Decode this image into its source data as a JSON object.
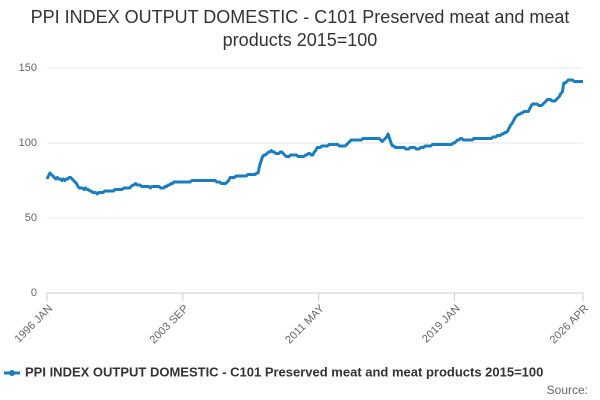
{
  "chart_data": {
    "type": "line",
    "title": "PPI INDEX OUTPUT DOMESTIC - C101 Preserved meat and meat products 2015=100",
    "source": "Source:",
    "categories": [
      "1996 JAN",
      null,
      null,
      null,
      null,
      null,
      null,
      null,
      null,
      null,
      null,
      null,
      null,
      null,
      null,
      null,
      null,
      null,
      null,
      null,
      null,
      null,
      null,
      null,
      null,
      null,
      null,
      null,
      null,
      null,
      null,
      null,
      null,
      null,
      null,
      null,
      null,
      null,
      null,
      null,
      null,
      null,
      null,
      null,
      null,
      null,
      null,
      null,
      null,
      null,
      null,
      null,
      null,
      null,
      null,
      null,
      null,
      null,
      null,
      null,
      null,
      null,
      null,
      null,
      null,
      null,
      null,
      null,
      null,
      null,
      null,
      null,
      null,
      null,
      null,
      null,
      null,
      null,
      null,
      null,
      null,
      null,
      null,
      null,
      null,
      null,
      null,
      null,
      null,
      null,
      null,
      null,
      "2003 SEP",
      null,
      null,
      null,
      null,
      null,
      null,
      null,
      null,
      null,
      null,
      null,
      null,
      null,
      null,
      null,
      null,
      null,
      null,
      null,
      null,
      null,
      null,
      null,
      null,
      null,
      null,
      null,
      null,
      null,
      null,
      null,
      null,
      null,
      null,
      null,
      null,
      null,
      null,
      null,
      null,
      null,
      null,
      null,
      null,
      null,
      null,
      null,
      null,
      null,
      null,
      null,
      null,
      null,
      null,
      null,
      null,
      null,
      null,
      null,
      null,
      null,
      null,
      null,
      null,
      null,
      null,
      null,
      null,
      null,
      null,
      null,
      null,
      null,
      null,
      null,
      null,
      null,
      null,
      null,
      null,
      null,
      null,
      null,
      null,
      null,
      null,
      null,
      null,
      null,
      null,
      null,
      "2011 MAY",
      null,
      null,
      null,
      null,
      null,
      null,
      null,
      null,
      null,
      null,
      null,
      null,
      null,
      null,
      null,
      null,
      null,
      null,
      null,
      null,
      null,
      null,
      null,
      null,
      null,
      null,
      null,
      null,
      null,
      null,
      null,
      null,
      null,
      null,
      null,
      null,
      null,
      null,
      null,
      null,
      null,
      null,
      null,
      null,
      null,
      null,
      null,
      null,
      null,
      null,
      null,
      null,
      null,
      null,
      null,
      null,
      null,
      null,
      null,
      null,
      null,
      null,
      null,
      null,
      null,
      null,
      null,
      null,
      null,
      null,
      null,
      null,
      null,
      null,
      null,
      null,
      null,
      null,
      null,
      null,
      null,
      null,
      null,
      null,
      null,
      null,
      null,
      null,
      null,
      null,
      null,
      "2019 JAN",
      null,
      null,
      null,
      null,
      null,
      null,
      null,
      null,
      null,
      null,
      null,
      null,
      null,
      null,
      null,
      null,
      null,
      null,
      null,
      null,
      null,
      null,
      null,
      null,
      null,
      null,
      null,
      null,
      null,
      null,
      null,
      null,
      null,
      null,
      null,
      null,
      null,
      null,
      null,
      null,
      null,
      null,
      null,
      null,
      null,
      null,
      null,
      null,
      null,
      null,
      null,
      null,
      null,
      null,
      null,
      null,
      null,
      null,
      null,
      null,
      null,
      null,
      null,
      null,
      null,
      null,
      null,
      null,
      null,
      null,
      null,
      null,
      null,
      null,
      null,
      null,
      null,
      null,
      null,
      null,
      null,
      null,
      null,
      null,
      null,
      null,
      "2026 APR"
    ],
    "series": [
      {
        "name": "PPI INDEX OUTPUT DOMESTIC - C101 Preserved meat and meat products 2015=100",
        "color": "#1a7dc0",
        "values": [
          76,
          78,
          80,
          79,
          78,
          77,
          76,
          77,
          76,
          76,
          75,
          76,
          75,
          76,
          76,
          77,
          77,
          76,
          75,
          74,
          73,
          71,
          70,
          70,
          70,
          69,
          70,
          69,
          69,
          68,
          68,
          67,
          67,
          67,
          66,
          67,
          67,
          67,
          67,
          68,
          68,
          68,
          68,
          68,
          68,
          68,
          69,
          69,
          69,
          69,
          69,
          69,
          70,
          70,
          70,
          70,
          70,
          71,
          72,
          72,
          73,
          72,
          72,
          72,
          71,
          71,
          71,
          71,
          71,
          71,
          70,
          71,
          71,
          71,
          71,
          71,
          71,
          70,
          70,
          70,
          71,
          71,
          72,
          72,
          73,
          73,
          74,
          74,
          74,
          74,
          74,
          74,
          74,
          74,
          74,
          74,
          74,
          74,
          75,
          75,
          75,
          75,
          75,
          75,
          75,
          75,
          75,
          75,
          75,
          75,
          75,
          75,
          75,
          75,
          75,
          74,
          74,
          74,
          73,
          73,
          73,
          73,
          74,
          75,
          77,
          77,
          77,
          77,
          78,
          78,
          78,
          78,
          78,
          78,
          78,
          78,
          79,
          79,
          79,
          79,
          79,
          79,
          80,
          80,
          85,
          88,
          91,
          92,
          92,
          93,
          94,
          94,
          95,
          94,
          94,
          93,
          93,
          93,
          94,
          94,
          93,
          92,
          91,
          91,
          91,
          92,
          92,
          92,
          92,
          92,
          91,
          91,
          91,
          91,
          91,
          92,
          92,
          93,
          93,
          92,
          92,
          94,
          95,
          97,
          97,
          97,
          98,
          98,
          98,
          98,
          98,
          99,
          99,
          99,
          99,
          99,
          99,
          99,
          98,
          98,
          98,
          98,
          98,
          99,
          100,
          101,
          102,
          102,
          102,
          102,
          102,
          102,
          102,
          102,
          103,
          103,
          103,
          103,
          103,
          103,
          103,
          103,
          103,
          103,
          103,
          103,
          102,
          101,
          102,
          103,
          104,
          106,
          103,
          100,
          98,
          98,
          97,
          97,
          97,
          97,
          97,
          97,
          97,
          96,
          96,
          96,
          97,
          97,
          97,
          97,
          96,
          96,
          96,
          97,
          97,
          97,
          98,
          98,
          98,
          98,
          98,
          99,
          99,
          99,
          99,
          99,
          99,
          99,
          99,
          99,
          99,
          99,
          99,
          99,
          99,
          100,
          100,
          101,
          102,
          102,
          103,
          103,
          102,
          102,
          102,
          102,
          102,
          102,
          102,
          103,
          103,
          103,
          103,
          103,
          103,
          103,
          103,
          103,
          103,
          103,
          103,
          103,
          104,
          104,
          104,
          105,
          105,
          105,
          106,
          106,
          107,
          107,
          108,
          110,
          112,
          113,
          115,
          117,
          118,
          119,
          119,
          120,
          120,
          121,
          121,
          121,
          121,
          123,
          125,
          126,
          126,
          126,
          126,
          125,
          125,
          125,
          126,
          127,
          128,
          129,
          129,
          129,
          128,
          128,
          128,
          129,
          130,
          131,
          133,
          134,
          140,
          140,
          141,
          142,
          142,
          142,
          142,
          141,
          141,
          141,
          141,
          141,
          141,
          141
        ]
      }
    ],
    "ylim": [
      0,
      160
    ],
    "yticks": [
      0,
      50,
      100,
      150
    ],
    "grid": true
  }
}
